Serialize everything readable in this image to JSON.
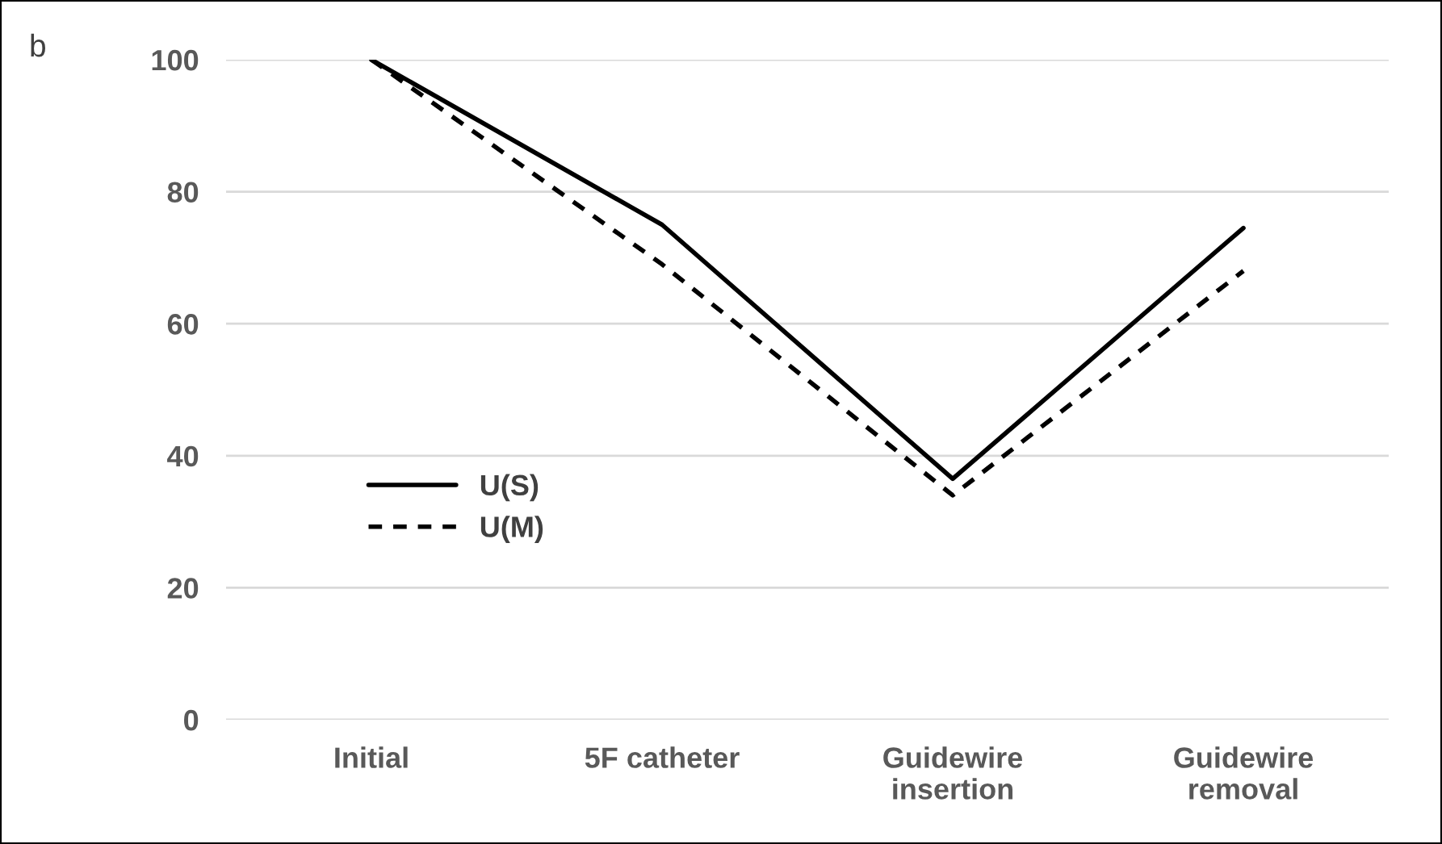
{
  "chart_data": {
    "type": "line",
    "categories": [
      "Initial",
      "5F catheter",
      "Guidewire\ninsertion",
      "Guidewire\nremoval"
    ],
    "series": [
      {
        "name": "U(S)",
        "color": "#000000",
        "values": [
          100,
          75,
          36.5,
          74.5
        ],
        "line_style": "solid"
      },
      {
        "name": "U(M)",
        "color": "#000000",
        "values": [
          100,
          69,
          34,
          68
        ],
        "line_style": "dashed"
      }
    ],
    "ylim": [
      0,
      100
    ],
    "yticks": [
      0,
      20,
      40,
      60,
      80,
      100
    ],
    "grid": "y",
    "legend": "left",
    "marker": "none",
    "annotations": [
      "b"
    ]
  }
}
